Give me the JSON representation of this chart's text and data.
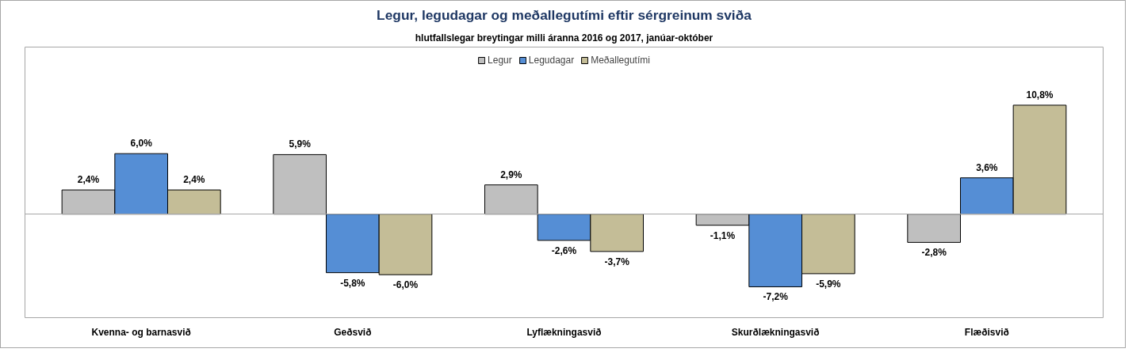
{
  "chart_data": {
    "type": "bar",
    "title": "Legur, legudagar og meðallegutími eftir sérgreinum sviða",
    "subtitle": "hlutfallslegar breytingar milli áranna 2016 og 2017, janúar-október",
    "categories": [
      "Kvenna- og barnasvið",
      "Geðsvið",
      "Lyflækningasvið",
      "Skurðlækningasvið",
      "Flæðisvið"
    ],
    "series": [
      {
        "name": "Legur",
        "color": "#bfbfbf",
        "values": [
          2.4,
          5.9,
          2.9,
          -1.1,
          -2.8
        ],
        "value_labels": [
          "2,4%",
          "5,9%",
          "2,9%",
          "-1,1%",
          "-2,8%"
        ]
      },
      {
        "name": "Legudagar",
        "color": "#558ed5",
        "values": [
          6.0,
          -5.8,
          -2.6,
          -7.2,
          3.6
        ],
        "value_labels": [
          "6,0%",
          "-5,8%",
          "-2,6%",
          "-7,2%",
          "3,6%"
        ]
      },
      {
        "name": "Meðallegutími",
        "color": "#c4bd97",
        "values": [
          2.4,
          -6.0,
          -3.7,
          -5.9,
          10.8
        ],
        "value_labels": [
          "2,4%",
          "-6,0%",
          "-3,7%",
          "-5,9%",
          "10,8%"
        ]
      }
    ],
    "legend": "top",
    "grid": false,
    "tick_labels": "x"
  }
}
